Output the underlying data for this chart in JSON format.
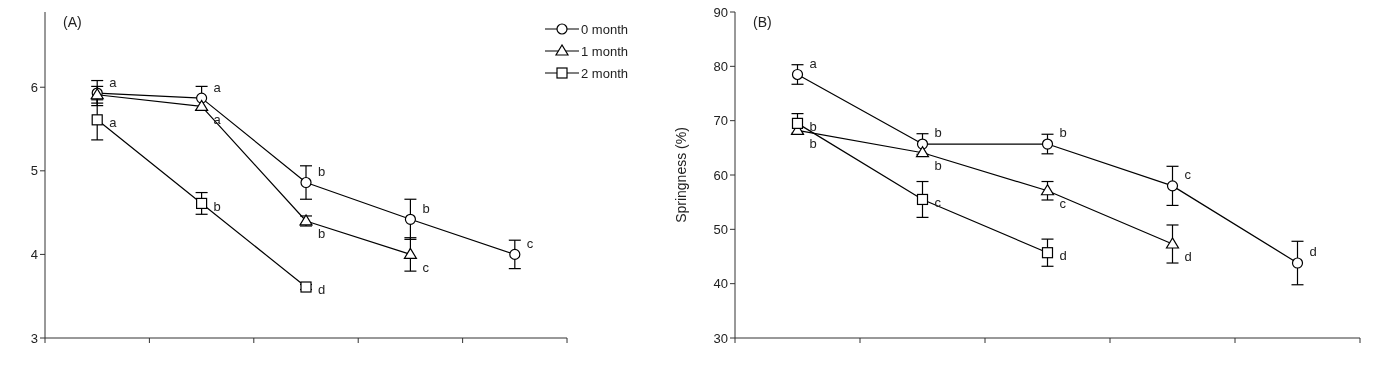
{
  "chart_data": [
    {
      "type": "line",
      "title": "(A)",
      "categories": [
        null,
        null,
        null,
        null,
        null
      ],
      "ylim": [
        3,
        6.9
      ],
      "yticks": [
        3,
        4,
        5,
        6
      ],
      "legend": "top right",
      "grid": false,
      "line_style": "solid",
      "series": [
        {
          "name": "0 month",
          "color": "#000000",
          "marker": "circle",
          "values": [
            5.93,
            5.87,
            4.86,
            4.42,
            4.0
          ],
          "errors": [
            0.15,
            0.14,
            0.2,
            0.24,
            0.17
          ],
          "value_labels": [
            "a",
            "a",
            "b",
            "b",
            "c"
          ]
        },
        {
          "name": "1 month",
          "color": "#000000",
          "marker": "triangle",
          "values": [
            5.91,
            5.77,
            4.4,
            4.0,
            null
          ],
          "errors": [
            0.1,
            null,
            0.06,
            0.2,
            null
          ],
          "value_labels": [
            null,
            "a",
            "b",
            "c",
            null
          ]
        },
        {
          "name": "2 month",
          "color": "#000000",
          "marker": "square",
          "values": [
            5.61,
            4.61,
            3.61,
            null,
            null
          ],
          "errors": [
            0.24,
            0.13,
            0.03,
            null,
            null
          ],
          "value_labels": [
            "a",
            "b",
            "d",
            null,
            null
          ]
        }
      ]
    },
    {
      "type": "line",
      "title": "(B)",
      "ylabel": "Springness (%)",
      "categories": [
        null,
        null,
        null,
        null,
        null
      ],
      "ylim": [
        30,
        90
      ],
      "yticks": [
        30,
        40,
        50,
        60,
        70,
        80,
        90
      ],
      "legend": false,
      "grid": false,
      "line_style": "solid",
      "series": [
        {
          "color": "#000000",
          "marker": "circle",
          "values": [
            78.5,
            65.7,
            65.7,
            58.0,
            43.8
          ],
          "errors": [
            1.8,
            1.9,
            1.8,
            3.6,
            4.0
          ],
          "value_labels": [
            "a",
            "b",
            "b",
            "c",
            "d"
          ]
        },
        {
          "color": "#000000",
          "marker": "triangle",
          "values": [
            68.2,
            64.1,
            57.1,
            47.3,
            null
          ],
          "errors": [
            null,
            null,
            1.7,
            3.5,
            null
          ],
          "value_labels": [
            "b",
            "b",
            "c",
            "d",
            null
          ]
        },
        {
          "color": "#000000",
          "marker": "square",
          "values": [
            69.5,
            55.5,
            45.7,
            null,
            null
          ],
          "errors": [
            1.8,
            3.3,
            2.5,
            null,
            null
          ],
          "value_labels": [
            "b",
            "c",
            "d",
            null,
            null
          ]
        }
      ]
    }
  ]
}
